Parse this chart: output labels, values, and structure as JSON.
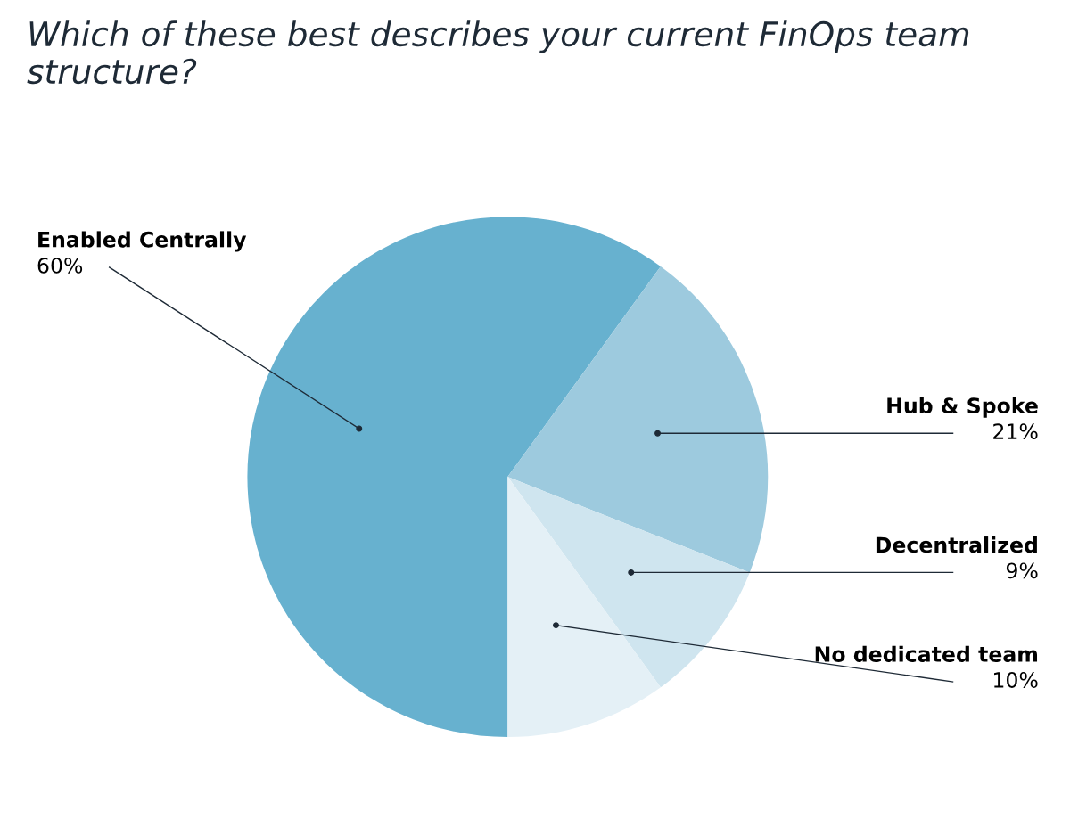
{
  "chart_data": {
    "type": "pie",
    "title": "Which of these best describes your current FinOps team structure?",
    "categories": [
      "Enabled Centrally",
      "Hub & Spoke",
      "Decentralized",
      "No dedicated team"
    ],
    "values": [
      60,
      21,
      9,
      10
    ],
    "value_labels": [
      "60%",
      "21%",
      "9%",
      "10%"
    ],
    "colors": [
      "#67b1cf",
      "#9dcade",
      "#cfe5ef",
      "#e4f0f6"
    ],
    "legend": false
  }
}
